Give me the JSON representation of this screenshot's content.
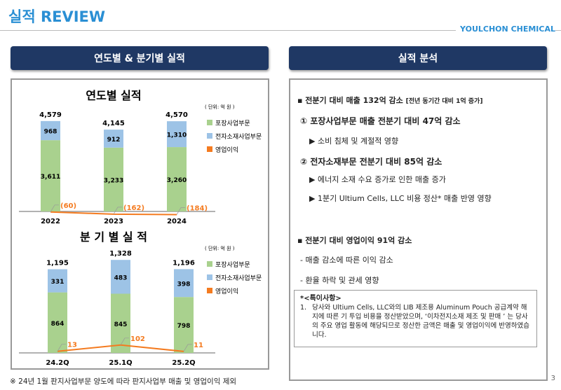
{
  "header": {
    "title": "실적 REVIEW",
    "brand": "YOULCHON CHEMICAL"
  },
  "left": {
    "heading": "연도별 & 분기별 실적"
  },
  "right": {
    "heading": "실적 분석",
    "items": [
      "▪  전분기 대비 매출 132억 감소",
      "[전년 동기간 대비 1억 증가]",
      "① 포장사업부문 매출 전분기 대비 47억 감소",
      "▶  소비 침체 및 계절적 영향",
      "② 전자소재부문 전분기 대비 85억 감소",
      "▶  에너지 소재 수요 증가로 인한 매출 증가",
      "▶  1분기 Ultium Cells, LLC 비용 정산* 매출 반영 영향",
      "▪  전분기 대비 영업이익 91억 감소",
      "- 매출 감소에 따른 이익 감소",
      "- 환율 하락 및 관세 영향"
    ],
    "note": {
      "title": "*<특이사항>",
      "num": "1.",
      "text": "당사와 Ultium Cells, LLC와의 LIB 제조용 Aluminum Pouch 공급계약 해지에 따른 기 투입 비용을 정산받았으며, ‘이차전지소재 제조 및 판매 ’ 는 당사의 주요 영업 활동에 해당되므로 정산한 금액은 매출 및 영업이익에 반영하였습니다."
    }
  },
  "footnote": "※ 24년 1월 판지사업부문 양도에 따라 판지사업부 매출 및 영업이익 제외",
  "page_number": "3",
  "chart_data": [
    {
      "type": "bar",
      "stacked": true,
      "title": "연도별  실적",
      "unit": "( 단위: 억 원 )",
      "categories": [
        "2022",
        "2023",
        "2024"
      ],
      "series": [
        {
          "name": "포장사업부문",
          "values": [
            3611,
            3233,
            3260
          ],
          "color": "#a9d18e"
        },
        {
          "name": "전자소재사업부문",
          "values": [
            968,
            912,
            1310
          ],
          "color": "#9dc3e6"
        },
        {
          "name": "영업이익",
          "type": "line",
          "values": [
            -60,
            -162,
            -184
          ],
          "labels": [
            "(60)",
            "(162)",
            "(184)"
          ],
          "color": "#f47b20"
        }
      ],
      "totals": [
        "4,579",
        "4,145",
        "4,570"
      ],
      "bar_labels": [
        [
          "3,611",
          "3,233",
          "3,260"
        ],
        [
          "968",
          "912",
          "1,310"
        ]
      ],
      "legend": "right"
    },
    {
      "type": "bar",
      "stacked": true,
      "title": "분 기 별   실 적",
      "unit": "( 단위: 억 원 )",
      "categories": [
        "24.2Q",
        "25.1Q",
        "25.2Q"
      ],
      "series": [
        {
          "name": "포장사업부문",
          "values": [
            864,
            845,
            798
          ],
          "color": "#a9d18e"
        },
        {
          "name": "전자소재사업부문",
          "values": [
            331,
            483,
            398
          ],
          "color": "#9dc3e6"
        },
        {
          "name": "영업이익",
          "type": "line",
          "values": [
            13,
            102,
            11
          ],
          "labels": [
            "13",
            "102",
            "11"
          ],
          "color": "#f47b20"
        }
      ],
      "totals": [
        "1,195",
        "1,328",
        "1,196"
      ],
      "bar_labels": [
        [
          "864",
          "845",
          "798"
        ],
        [
          "331",
          "483",
          "398"
        ]
      ],
      "legend": "right"
    }
  ]
}
